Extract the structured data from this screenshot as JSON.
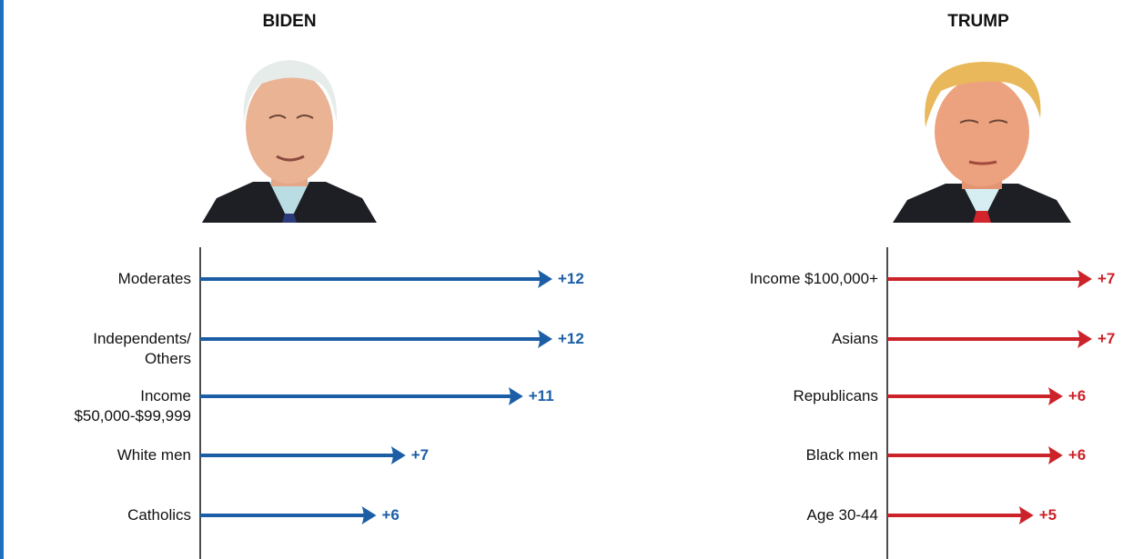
{
  "chart_data": [
    {
      "type": "bar",
      "title": "BIDEN",
      "color": "#1c5ea6",
      "categories": [
        "Moderates",
        "Independents/\nOthers",
        "Income\n$50,000-$99,999",
        "White men",
        "Catholics"
      ],
      "values": [
        12,
        12,
        11,
        7,
        6
      ],
      "value_labels": [
        "+12",
        "+12",
        "+11",
        "+7",
        "+6"
      ],
      "xlim": [
        0,
        12
      ]
    },
    {
      "type": "bar",
      "title": "TRUMP",
      "color": "#cc2229",
      "categories": [
        "Income $100,000+",
        "Asians",
        "Republicans",
        "Black men",
        "Age 30-44"
      ],
      "values": [
        7,
        7,
        6,
        6,
        5
      ],
      "value_labels": [
        "+7",
        "+7",
        "+6",
        "+6",
        "+5"
      ],
      "xlim": [
        0,
        7
      ]
    }
  ]
}
